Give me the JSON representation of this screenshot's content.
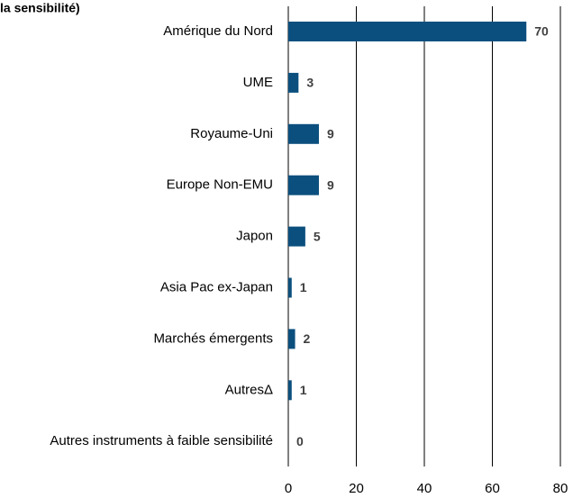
{
  "chart_data": {
    "type": "bar",
    "orientation": "horizontal",
    "title": "la sensibilité)",
    "categories": [
      "Amérique du Nord",
      "UME",
      "Royaume-Uni",
      "Europe Non-EMU",
      "Japon",
      "Asia Pac ex-Japan",
      "Marchés émergents",
      "AutresΔ",
      "Autres instruments à faible sensibilité"
    ],
    "values": [
      70,
      3,
      9,
      9,
      5,
      1,
      2,
      1,
      0
    ],
    "color": "#0b4f7e",
    "xlim": [
      0,
      80
    ],
    "xticks": [
      0,
      20,
      40,
      60,
      80
    ],
    "grid": true
  }
}
